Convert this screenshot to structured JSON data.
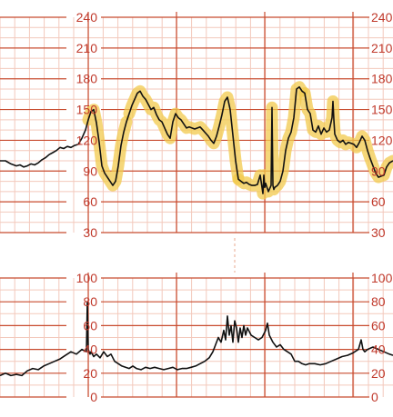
{
  "chart_data": [
    {
      "type": "line",
      "ylim": [
        30,
        240
      ],
      "yticks": [
        240,
        210,
        180,
        150,
        120,
        90,
        60,
        30
      ],
      "tick_label_sides": [
        "left",
        "right"
      ],
      "grid": true,
      "colors": {
        "trace": "#111111",
        "highlight": "#f2c94c",
        "major_grid": "#c84b2f",
        "minor_grid": "#f3c9bc",
        "tick_label": "#c0392b"
      },
      "xlim": [
        0,
        432
      ],
      "series": [
        {
          "highlighted_ranges": [
            [
              97,
              140
            ],
            [
              140,
              262
            ],
            [
              262,
              334
            ],
            [
              334,
              432
            ]
          ],
          "x": [
            0,
            6,
            12,
            18,
            22,
            26,
            30,
            34,
            38,
            42,
            46,
            50,
            54,
            58,
            62,
            66,
            70,
            74,
            78,
            82,
            86,
            90,
            94,
            97,
            100,
            103,
            106,
            109,
            112,
            115,
            118,
            121,
            124,
            127,
            130,
            133,
            136,
            139,
            142,
            145,
            148,
            151,
            154,
            157,
            160,
            163,
            166,
            169,
            172,
            175,
            178,
            181,
            184,
            187,
            190,
            193,
            196,
            199,
            202,
            205,
            208,
            211,
            214,
            217,
            220,
            223,
            226,
            229,
            232,
            235,
            238,
            241,
            244,
            247,
            250,
            253,
            256,
            259,
            262,
            265,
            268,
            271,
            274,
            277,
            280,
            283,
            286,
            288,
            289,
            290,
            291,
            292,
            295,
            298,
            299,
            300,
            301,
            302,
            305,
            308,
            311,
            314,
            317,
            320,
            323,
            326,
            329,
            332,
            335,
            338,
            341,
            344,
            347,
            350,
            353,
            356,
            359,
            362,
            365,
            366,
            367,
            368,
            371,
            374,
            377,
            380,
            383,
            386,
            389,
            392,
            395,
            398,
            401,
            404,
            407,
            410,
            413,
            416,
            419,
            422,
            425,
            428,
            432
          ],
          "y": [
            100,
            100,
            97,
            95,
            96,
            94,
            95,
            97,
            96,
            98,
            101,
            103,
            106,
            108,
            110,
            113,
            112,
            114,
            113,
            115,
            116,
            122,
            130,
            140,
            148,
            150,
            137,
            118,
            95,
            88,
            84,
            80,
            76,
            80,
            95,
            115,
            128,
            138,
            146,
            154,
            160,
            166,
            168,
            163,
            160,
            155,
            150,
            152,
            145,
            140,
            138,
            132,
            126,
            122,
            138,
            146,
            142,
            140,
            136,
            132,
            133,
            132,
            131,
            132,
            133,
            130,
            127,
            124,
            120,
            117,
            124,
            134,
            145,
            158,
            162,
            150,
            125,
            100,
            82,
            80,
            78,
            79,
            77,
            76,
            76,
            77,
            86,
            74,
            68,
            86,
            74,
            78,
            70,
            76,
            152,
            76,
            72,
            74,
            76,
            80,
            90,
            110,
            122,
            128,
            142,
            170,
            172,
            168,
            166,
            150,
            146,
            130,
            128,
            134,
            126,
            132,
            128,
            130,
            142,
            158,
            140,
            126,
            120,
            118,
            120,
            116,
            118,
            117,
            116,
            113,
            118,
            124,
            120,
            110,
            102,
            95,
            88,
            84,
            85,
            86,
            94,
            98,
            100
          ]
        }
      ]
    },
    {
      "type": "line",
      "ylim": [
        0,
        100
      ],
      "yticks": [
        100,
        80,
        60,
        40,
        20,
        0
      ],
      "tick_label_sides": [
        "left",
        "right"
      ],
      "grid": true,
      "colors": {
        "trace": "#111111",
        "major_grid": "#c84b2f",
        "minor_grid": "#f3c9bc",
        "tick_label": "#c0392b"
      },
      "xlim": [
        0,
        432
      ],
      "series": [
        {
          "x": [
            0,
            6,
            12,
            18,
            24,
            30,
            36,
            42,
            48,
            54,
            60,
            66,
            72,
            78,
            84,
            90,
            95,
            96,
            97,
            98,
            99,
            100,
            103,
            106,
            110,
            114,
            118,
            122,
            126,
            130,
            134,
            138,
            142,
            146,
            150,
            155,
            160,
            165,
            170,
            175,
            180,
            185,
            190,
            195,
            200,
            205,
            210,
            215,
            220,
            225,
            230,
            234,
            237,
            240,
            243,
            246,
            248,
            250,
            252,
            254,
            256,
            258,
            260,
            262,
            264,
            266,
            268,
            270,
            272,
            276,
            280,
            284,
            288,
            292,
            294,
            296,
            300,
            304,
            308,
            312,
            316,
            320,
            324,
            328,
            332,
            336,
            340,
            346,
            352,
            358,
            364,
            370,
            376,
            382,
            388,
            394,
            397,
            399,
            401,
            404,
            410,
            416,
            422,
            428,
            432
          ],
          "y": [
            18,
            20,
            18,
            19,
            18,
            22,
            24,
            23,
            26,
            28,
            30,
            32,
            35,
            38,
            36,
            40,
            38,
            80,
            40,
            38,
            36,
            38,
            34,
            36,
            33,
            38,
            34,
            36,
            30,
            28,
            26,
            25,
            24,
            26,
            24,
            23,
            25,
            24,
            25,
            24,
            23,
            24,
            25,
            23,
            24,
            24,
            25,
            26,
            28,
            30,
            33,
            38,
            44,
            50,
            46,
            56,
            48,
            68,
            52,
            60,
            46,
            64,
            58,
            46,
            58,
            50,
            60,
            52,
            58,
            52,
            50,
            48,
            50,
            56,
            62,
            52,
            46,
            42,
            44,
            40,
            38,
            36,
            30,
            30,
            28,
            27,
            28,
            28,
            27,
            28,
            30,
            32,
            34,
            35,
            37,
            40,
            48,
            40,
            38,
            40,
            42,
            40,
            38,
            36,
            35
          ]
        }
      ]
    }
  ]
}
